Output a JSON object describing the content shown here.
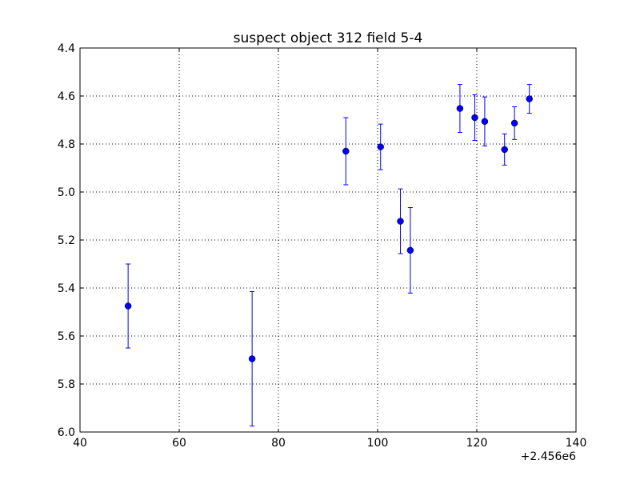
{
  "chart_data": {
    "type": "scatter",
    "title": "suspect object 312 field 5-4",
    "xlabel": "",
    "ylabel": "",
    "x_offset_label": "+2.456e6",
    "xlim": [
      40,
      140
    ],
    "ylim": [
      6.0,
      4.4
    ],
    "y_inverted": true,
    "xticks": [
      40,
      60,
      80,
      100,
      120,
      140
    ],
    "yticks": [
      4.4,
      4.6,
      4.8,
      5.0,
      5.2,
      5.4,
      5.6,
      5.8,
      6.0
    ],
    "xtick_labels": [
      "40",
      "60",
      "80",
      "100",
      "120",
      "140"
    ],
    "ytick_labels": [
      "4.4",
      "4.6",
      "4.8",
      "5.0",
      "5.2",
      "5.4",
      "5.6",
      "5.8",
      "6.0"
    ],
    "grid": true,
    "color": "#0000ff",
    "series": [
      {
        "points": [
          {
            "x": 49.7,
            "y": 5.475,
            "err": 0.175
          },
          {
            "x": 74.7,
            "y": 5.695,
            "err": 0.28
          },
          {
            "x": 93.6,
            "y": 4.83,
            "err": 0.14
          },
          {
            "x": 100.6,
            "y": 4.812,
            "err": 0.095
          },
          {
            "x": 104.6,
            "y": 5.122,
            "err": 0.135
          },
          {
            "x": 106.6,
            "y": 5.243,
            "err": 0.178
          },
          {
            "x": 116.6,
            "y": 4.652,
            "err": 0.1
          },
          {
            "x": 119.6,
            "y": 4.69,
            "err": 0.095
          },
          {
            "x": 121.6,
            "y": 4.706,
            "err": 0.102
          },
          {
            "x": 125.6,
            "y": 4.823,
            "err": 0.065
          },
          {
            "x": 127.6,
            "y": 4.713,
            "err": 0.068
          },
          {
            "x": 130.6,
            "y": 4.612,
            "err": 0.06
          }
        ]
      }
    ]
  }
}
